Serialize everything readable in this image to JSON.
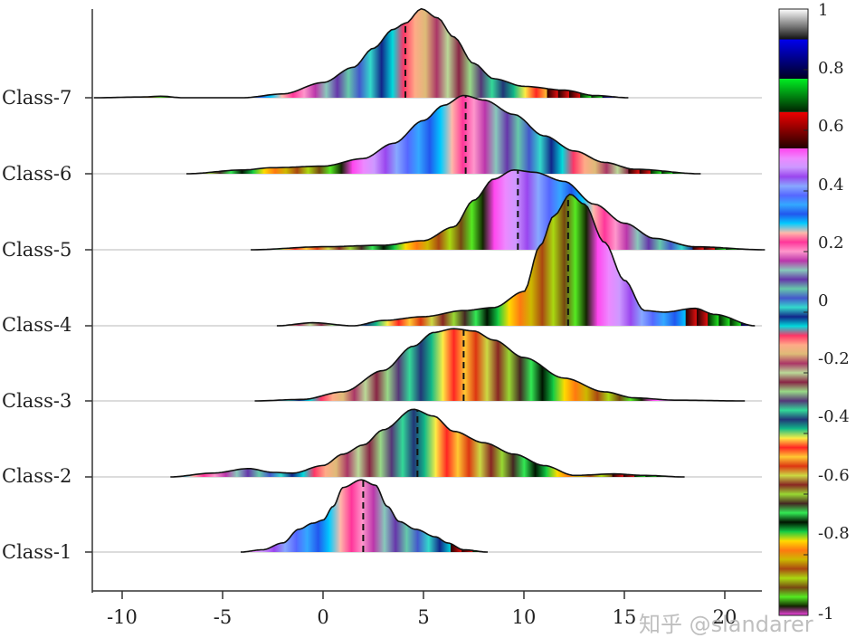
{
  "chart_data": {
    "type": "ridgeline-density",
    "title": "",
    "xlabel": "",
    "ylabel": "",
    "xlim": [
      -11.5,
      22
    ],
    "xticks": [
      -10,
      -5,
      0,
      5,
      10,
      15,
      20
    ],
    "xtick_labels": [
      "-10",
      "-5",
      "0",
      "5",
      "10",
      "15",
      "20"
    ],
    "categories": [
      "Class-1",
      "Class-2",
      "Class-3",
      "Class-4",
      "Class-5",
      "Class-6",
      "Class-7"
    ],
    "grid": "horizontal baselines (light gray)",
    "series": [
      {
        "name": "Class-1",
        "range": [
          -4.1,
          8.2
        ],
        "median": 2.0,
        "peak_x": 1.9,
        "peak_height": 0.95,
        "shape": [
          [
            -4.1,
            0
          ],
          [
            -3,
            0.03
          ],
          [
            -2,
            0.12
          ],
          [
            -1.2,
            0.3
          ],
          [
            -0.5,
            0.38
          ],
          [
            0,
            0.42
          ],
          [
            0.5,
            0.6
          ],
          [
            1.0,
            0.85
          ],
          [
            1.9,
            0.95
          ],
          [
            2.6,
            0.88
          ],
          [
            3.2,
            0.6
          ],
          [
            3.8,
            0.4
          ],
          [
            4.6,
            0.3
          ],
          [
            5.6,
            0.2
          ],
          [
            6.2,
            0.12
          ],
          [
            7,
            0.03
          ],
          [
            8.2,
            0
          ]
        ]
      },
      {
        "name": "Class-2",
        "range": [
          -7.6,
          18
        ],
        "median": 4.7,
        "peak_x": 4.5,
        "peak_height": 0.89,
        "shape": [
          [
            -7.6,
            0
          ],
          [
            -5.5,
            0.05
          ],
          [
            -3.7,
            0.11
          ],
          [
            -2.5,
            0.06
          ],
          [
            -1.5,
            0.05
          ],
          [
            0,
            0.15
          ],
          [
            1,
            0.3
          ],
          [
            2,
            0.42
          ],
          [
            3,
            0.62
          ],
          [
            4.5,
            0.89
          ],
          [
            5.5,
            0.8
          ],
          [
            6.5,
            0.6
          ],
          [
            8,
            0.45
          ],
          [
            9.5,
            0.3
          ],
          [
            11,
            0.15
          ],
          [
            12.5,
            0.02
          ],
          [
            14.5,
            0.04
          ],
          [
            16,
            0.02
          ],
          [
            18,
            0
          ]
        ]
      },
      {
        "name": "Class-3",
        "range": [
          -3.4,
          21
        ],
        "median": 7.0,
        "peak_x": 6.5,
        "peak_height": 0.95,
        "shape": [
          [
            -3.4,
            0
          ],
          [
            -1,
            0.02
          ],
          [
            1,
            0.12
          ],
          [
            3,
            0.4
          ],
          [
            4.5,
            0.72
          ],
          [
            5.5,
            0.9
          ],
          [
            6.5,
            0.95
          ],
          [
            7.5,
            0.92
          ],
          [
            8.5,
            0.8
          ],
          [
            10,
            0.57
          ],
          [
            12,
            0.3
          ],
          [
            14,
            0.12
          ],
          [
            15.5,
            0.04
          ],
          [
            17.5,
            0.01
          ],
          [
            21,
            0
          ]
        ]
      },
      {
        "name": "Class-4",
        "range": [
          -2.3,
          21.5
        ],
        "median": 12.2,
        "peak_x": 12.3,
        "peak_height": 1.73,
        "shape": [
          [
            -2.3,
            0
          ],
          [
            -0.5,
            0.04
          ],
          [
            1.5,
            0
          ],
          [
            3,
            0.07
          ],
          [
            5,
            0.12
          ],
          [
            7,
            0.2
          ],
          [
            8.5,
            0.24
          ],
          [
            10,
            0.45
          ],
          [
            10.8,
            1.05
          ],
          [
            11.5,
            1.45
          ],
          [
            12.3,
            1.73
          ],
          [
            13,
            1.6
          ],
          [
            14,
            1.1
          ],
          [
            15,
            0.6
          ],
          [
            16,
            0.2
          ],
          [
            17,
            0.18
          ],
          [
            18.5,
            0.23
          ],
          [
            19.5,
            0.15
          ],
          [
            21.5,
            0
          ]
        ]
      },
      {
        "name": "Class-5",
        "range": [
          -3.6,
          22
        ],
        "median": 9.7,
        "peak_x": 9.5,
        "peak_height": 1.05,
        "shape": [
          [
            -3.6,
            0
          ],
          [
            0,
            0.04
          ],
          [
            3,
            0.06
          ],
          [
            5,
            0.12
          ],
          [
            6.5,
            0.3
          ],
          [
            7.5,
            0.65
          ],
          [
            8.5,
            0.93
          ],
          [
            9.5,
            1.05
          ],
          [
            10.5,
            1.02
          ],
          [
            12,
            0.9
          ],
          [
            13.5,
            0.6
          ],
          [
            15,
            0.35
          ],
          [
            16.5,
            0.15
          ],
          [
            18.5,
            0.04
          ],
          [
            22,
            0
          ]
        ]
      },
      {
        "name": "Class-6",
        "range": [
          -6.8,
          18.8
        ],
        "median": 7.1,
        "peak_x": 7.0,
        "peak_height": 1.03,
        "shape": [
          [
            -6.8,
            0
          ],
          [
            -4,
            0.05
          ],
          [
            -2.5,
            0.08
          ],
          [
            0,
            0.1
          ],
          [
            2,
            0.2
          ],
          [
            3.5,
            0.4
          ],
          [
            5,
            0.7
          ],
          [
            6,
            0.9
          ],
          [
            7,
            1.03
          ],
          [
            8,
            0.97
          ],
          [
            9.5,
            0.78
          ],
          [
            11,
            0.5
          ],
          [
            12.5,
            0.3
          ],
          [
            14,
            0.15
          ],
          [
            15.5,
            0.06
          ],
          [
            18.8,
            0
          ]
        ]
      },
      {
        "name": "Class-7",
        "range": [
          -11.4,
          15.2
        ],
        "median": 4.1,
        "peak_x": 4.9,
        "peak_height": 1.17,
        "shape": [
          [
            -11.4,
            0
          ],
          [
            -9,
            0.01
          ],
          [
            -8,
            0.02
          ],
          [
            -7,
            0
          ],
          [
            -4,
            0
          ],
          [
            -2,
            0.05
          ],
          [
            0,
            0.2
          ],
          [
            1.5,
            0.4
          ],
          [
            2.5,
            0.65
          ],
          [
            3.5,
            0.9
          ],
          [
            4.1,
            0.98
          ],
          [
            4.9,
            1.17
          ],
          [
            5.7,
            1.05
          ],
          [
            6.5,
            0.8
          ],
          [
            7.5,
            0.45
          ],
          [
            8.5,
            0.25
          ],
          [
            10,
            0.15
          ],
          [
            12,
            0.1
          ],
          [
            13.5,
            0.03
          ],
          [
            15.2,
            0
          ]
        ]
      }
    ],
    "colorbar": {
      "ticks": [
        1,
        0.8,
        0.6,
        0.4,
        0.2,
        0,
        -0.2,
        -0.4,
        -0.6,
        -0.8,
        -1
      ],
      "tick_labels": [
        "1",
        "0.8",
        "0.6",
        "0.4",
        "0.2",
        "0",
        "-0.2",
        "-0.4",
        "-0.6",
        "-0.8",
        "-1"
      ],
      "range": [
        -1,
        1
      ],
      "segments": [
        {
          "from": 0.9,
          "to": 1.0,
          "colors": [
            "#ffffff",
            "#111111"
          ]
        },
        {
          "from": 0.77,
          "to": 0.9,
          "colors": [
            "#0000ee",
            "#000022"
          ]
        },
        {
          "from": 0.66,
          "to": 0.77,
          "colors": [
            "#00ee22",
            "#002200"
          ]
        },
        {
          "from": 0.54,
          "to": 0.66,
          "colors": [
            "#ee0000",
            "#220000"
          ]
        }
      ],
      "lower_palette": [
        "#ff44ee",
        "#ee88ff",
        "#cc99ff",
        "#9944ee",
        "#88aaff",
        "#5566ff",
        "#33aaff",
        "#2255ee",
        "#00ccff",
        "#ffbbaa",
        "#ff3399",
        "#ff99cc",
        "#bb33aa",
        "#88ccbb",
        "#6633aa",
        "#66ccaa",
        "#4455cc",
        "#33ddcc",
        "#112288",
        "#00dddd",
        "#ff3366",
        "#ffaa88",
        "#ddbb77",
        "#aa3366",
        "#bbdd99",
        "#882244",
        "#99dd88",
        "#553377",
        "#33dd99",
        "#223377",
        "#11bb88",
        "#ffee44",
        "#ff2222",
        "#ffcc33",
        "#dd3311",
        "#ccdd44",
        "#882222",
        "#99dd33",
        "#442222",
        "#33ee55",
        "#001100",
        "#11cc44",
        "#ffdd00",
        "#ff7711",
        "#ccbb00",
        "#aa4411",
        "#aadd11",
        "#774411",
        "#55ee22",
        "#112200"
      ]
    }
  },
  "y_labels": [
    "Class-7",
    "Class-6",
    "Class-5",
    "Class-4",
    "Class-3",
    "Class-2",
    "Class-1"
  ],
  "x_labels": [
    "-10",
    "-5",
    "0",
    "5",
    "10",
    "15",
    "20"
  ],
  "colorbar_labels": [
    "1",
    "0.8",
    "0.6",
    "0.4",
    "0.2",
    "0",
    "-0.2",
    "-0.4",
    "-0.6",
    "-0.8",
    "-1"
  ],
  "watermark": "知乎 @slandarer"
}
